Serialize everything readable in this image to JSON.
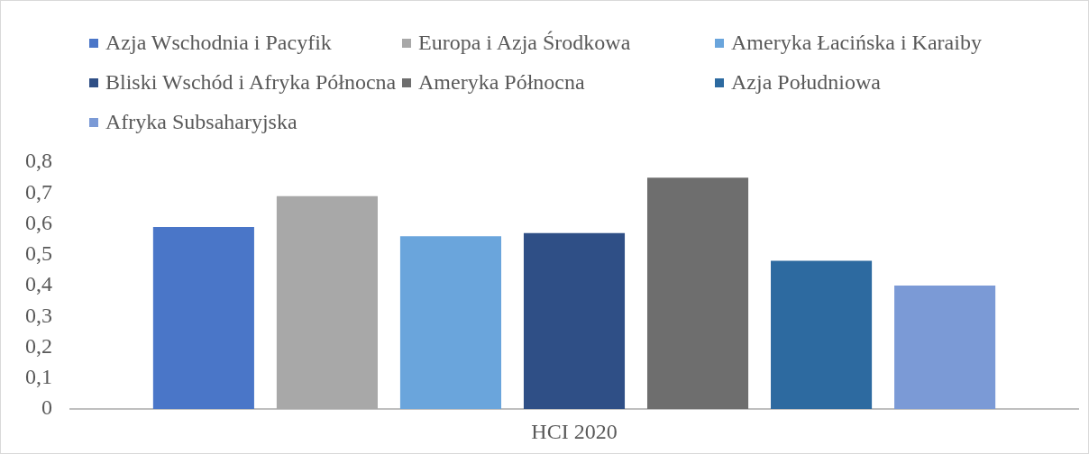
{
  "chart_data": {
    "type": "bar",
    "categories": [
      "HCI 2020"
    ],
    "series": [
      {
        "name": "Azja Wschodnia i Pacyfik",
        "color": "#4a76c8",
        "values": [
          0.59
        ]
      },
      {
        "name": "Europa i Azja Środkowa",
        "color": "#a8a8a8",
        "values": [
          0.69
        ]
      },
      {
        "name": "Ameryka Łacińska i Karaiby",
        "color": "#6aa5dc",
        "values": [
          0.56
        ]
      },
      {
        "name": "Bliski Wschód i Afryka Północna",
        "color": "#2f4f86",
        "values": [
          0.57
        ]
      },
      {
        "name": "Ameryka Północna",
        "color": "#6e6e6e",
        "values": [
          0.75
        ]
      },
      {
        "name": "Azja Południowa",
        "color": "#2d6aa0",
        "values": [
          0.48
        ]
      },
      {
        "name": "Afryka Subsaharyjska",
        "color": "#7b9ad6",
        "values": [
          0.4
        ]
      }
    ],
    "ylim": [
      0,
      0.8
    ],
    "yticks": [
      0,
      {
        "value": 0.1,
        "label": "0,1"
      },
      {
        "value": 0.2,
        "label": "0,2"
      },
      {
        "value": 0.3,
        "label": "0,3"
      },
      {
        "value": 0.4,
        "label": "0,4"
      },
      {
        "value": 0.5,
        "label": "0,5"
      },
      {
        "value": 0.6,
        "label": "0,6"
      },
      {
        "value": 0.7,
        "label": "0,7"
      },
      {
        "value": 0.8,
        "label": "0,8"
      }
    ],
    "grid": false,
    "legend": "top"
  }
}
